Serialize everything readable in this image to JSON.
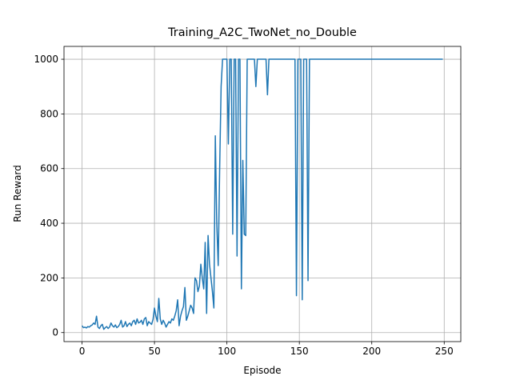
{
  "chart_data": {
    "type": "line",
    "title": "Training_A2C_TwoNet_no_Double",
    "xlabel": "Episode",
    "ylabel": "Run Reward",
    "x": [
      0,
      1,
      2,
      3,
      4,
      5,
      6,
      7,
      8,
      9,
      10,
      11,
      12,
      13,
      14,
      15,
      16,
      17,
      18,
      19,
      20,
      21,
      22,
      23,
      24,
      25,
      26,
      27,
      28,
      29,
      30,
      31,
      32,
      33,
      34,
      35,
      36,
      37,
      38,
      39,
      40,
      41,
      42,
      43,
      44,
      45,
      46,
      47,
      48,
      49,
      50,
      51,
      52,
      53,
      54,
      55,
      56,
      57,
      58,
      59,
      60,
      61,
      62,
      63,
      64,
      65,
      66,
      67,
      68,
      69,
      70,
      71,
      72,
      73,
      74,
      75,
      76,
      77,
      78,
      79,
      80,
      81,
      82,
      83,
      84,
      85,
      86,
      87,
      88,
      89,
      90,
      91,
      92,
      93,
      94,
      95,
      96,
      97,
      98,
      99,
      100,
      101,
      102,
      103,
      104,
      105,
      106,
      107,
      108,
      109,
      110,
      111,
      112,
      113,
      114,
      115,
      116,
      117,
      118,
      119,
      120,
      121,
      122,
      123,
      124,
      125,
      126,
      127,
      128,
      129,
      130,
      131,
      132,
      133,
      134,
      135,
      136,
      137,
      138,
      139,
      140,
      141,
      142,
      143,
      144,
      145,
      146,
      147,
      148,
      149,
      150,
      151,
      152,
      153,
      154,
      155,
      156,
      157,
      158,
      159,
      160,
      161,
      162,
      163,
      164,
      165,
      166,
      167,
      168,
      169,
      170,
      171,
      172,
      173,
      174,
      175,
      176,
      177,
      178,
      179,
      180,
      181,
      182,
      183,
      184,
      185,
      186,
      187,
      188,
      189,
      190,
      191,
      192,
      193,
      194,
      195,
      196,
      197,
      198,
      199,
      200,
      201,
      202,
      203,
      204,
      205,
      206,
      207,
      208,
      209,
      210,
      211,
      212,
      213,
      214,
      215,
      216,
      217,
      218,
      219,
      220,
      221,
      222,
      223,
      224,
      225,
      226,
      227,
      228,
      229,
      230,
      231,
      232,
      233,
      234,
      235,
      236,
      237,
      238,
      239,
      240,
      241,
      242,
      243,
      244,
      245,
      246,
      247,
      248,
      249
    ],
    "series": [
      {
        "color": "#1f77b4",
        "values": [
          25,
          18,
          20,
          17,
          22,
          20,
          25,
          28,
          35,
          30,
          60,
          20,
          15,
          25,
          30,
          12,
          18,
          22,
          15,
          20,
          35,
          25,
          20,
          28,
          18,
          22,
          30,
          45,
          20,
          25,
          40,
          22,
          30,
          35,
          25,
          40,
          45,
          30,
          50,
          35,
          38,
          45,
          30,
          50,
          55,
          25,
          40,
          35,
          30,
          48,
          90,
          60,
          40,
          125,
          50,
          30,
          45,
          35,
          20,
          30,
          40,
          35,
          50,
          45,
          60,
          80,
          120,
          25,
          60,
          80,
          95,
          165,
          45,
          60,
          80,
          100,
          90,
          70,
          200,
          190,
          150,
          170,
          250,
          200,
          160,
          330,
          70,
          355,
          250,
          200,
          150,
          90,
          720,
          400,
          245,
          600,
          900,
          1000,
          1000,
          1000,
          1000,
          690,
          1000,
          1000,
          360,
          1000,
          1000,
          280,
          1000,
          1000,
          160,
          630,
          360,
          355,
          1000,
          1000,
          1000,
          1000,
          1000,
          1000,
          900,
          1000,
          1000,
          1000,
          1000,
          1000,
          1000,
          1000,
          870,
          1000,
          1000,
          1000,
          1000,
          1000,
          1000,
          1000,
          1000,
          1000,
          1000,
          1000,
          1000,
          1000,
          1000,
          1000,
          1000,
          1000,
          1000,
          1000,
          135,
          1000,
          1000,
          1000,
          120,
          1000,
          1000,
          1000,
          190,
          1000,
          1000,
          1000,
          1000,
          1000,
          1000,
          1000,
          1000,
          1000,
          1000,
          1000,
          1000,
          1000,
          1000,
          1000,
          1000,
          1000,
          1000,
          1000,
          1000,
          1000,
          1000,
          1000,
          1000,
          1000,
          1000,
          1000,
          1000,
          1000,
          1000,
          1000,
          1000,
          1000,
          1000,
          1000,
          1000,
          1000,
          1000,
          1000,
          1000,
          1000,
          1000,
          1000,
          1000,
          1000,
          1000,
          1000,
          1000,
          1000,
          1000,
          1000,
          1000,
          1000,
          1000,
          1000,
          1000,
          1000,
          1000,
          1000,
          1000,
          1000,
          1000,
          1000,
          1000,
          1000,
          1000,
          1000,
          1000,
          1000,
          1000,
          1000,
          1000,
          1000,
          1000,
          1000,
          1000,
          1000,
          1000,
          1000,
          1000,
          1000,
          1000,
          1000,
          1000,
          1000,
          1000,
          1000,
          1000,
          1000,
          1000,
          1000,
          1000,
          1000
        ]
      }
    ],
    "xlim": [
      -12.45,
      261.45
    ],
    "xticks": [
      0,
      50,
      100,
      150,
      200,
      250
    ],
    "ylim": [
      -33,
      1047
    ],
    "yticks": [
      0,
      200,
      400,
      600,
      800,
      1000
    ],
    "grid": true
  }
}
